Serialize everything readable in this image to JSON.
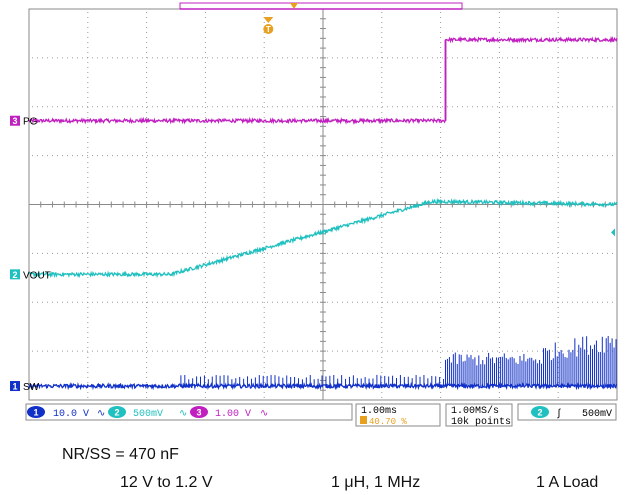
{
  "chart_data": {
    "type": "line",
    "title": "",
    "xlabel": "",
    "ylabel": "",
    "grid": true,
    "trigger_marker": "T",
    "series": [
      {
        "name": "PG",
        "channel": "3",
        "color": "#c020c0",
        "x": [
          0,
          4.25,
          4.25,
          6.0
        ],
        "y": [
          2.0,
          2.0,
          3.45,
          3.45
        ],
        "noise": 0.06
      },
      {
        "name": "VOUT",
        "channel": "2",
        "color": "#20c0c0",
        "x": [
          0,
          1.45,
          4.1,
          4.35,
          6.0
        ],
        "y": [
          -0.75,
          -0.75,
          0.55,
          0.55,
          0.5
        ],
        "noise": 0.06
      },
      {
        "name": "SW",
        "channel": "1",
        "color": "#1030c8",
        "x": [
          0,
          6.0
        ],
        "y": [
          -2.75,
          -2.75
        ],
        "noise": 0.07,
        "spikes": [
          {
            "from": 1.55,
            "to": 4.25,
            "height": 0.2
          },
          {
            "from": 4.25,
            "to": 5.25,
            "height": 0.6
          },
          {
            "from": 5.25,
            "to": 6.0,
            "height": 1.05
          }
        ]
      }
    ],
    "x_range": [
      0,
      6
    ],
    "y_range": [
      -3.0,
      4.0
    ],
    "status_bar": {
      "ch1": {
        "num": "1",
        "label": "10.0 V",
        "color": "#1030c8"
      },
      "ch2": {
        "num": "2",
        "label": "500mV",
        "color": "#20c0c0"
      },
      "ch3": {
        "num": "3",
        "label": "1.00 V",
        "color": "#c020c0"
      },
      "bw_symbol": "∿",
      "timebase": "1.00ms",
      "trigger_pos": "40.70 %",
      "sample_rate": "1.00MS/s",
      "record_length": "10k points",
      "trigger_channel": "2",
      "trigger_slope": "∫",
      "trigger_level": "500mV"
    }
  },
  "caption": {
    "line1": "NR/SS = 470 nF",
    "conditions": "12 V to 1.2 V",
    "inductor": "1 μH, 1 MHz",
    "load": "1 A Load"
  }
}
